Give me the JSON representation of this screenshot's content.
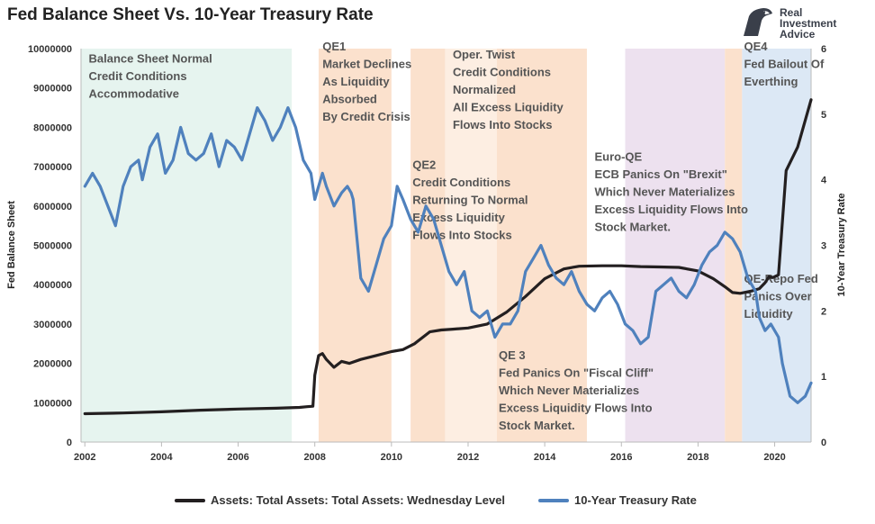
{
  "title": "Fed Balance Sheet Vs. 10-Year Treasury Rate",
  "logo": {
    "line1": "Real",
    "line2": "Investment",
    "line3": "Advice",
    "icon": "eagle-head-icon"
  },
  "chart_data": {
    "type": "line",
    "xlim": [
      2001.9,
      2020.95
    ],
    "x_ticks": [
      "2002",
      "2004",
      "2006",
      "2008",
      "2010",
      "2012",
      "2014",
      "2016",
      "2018",
      "2020"
    ],
    "ylabel_left": "Fed Balance Sheet",
    "ylabel_right": "10-Year Treasury Rate",
    "ylim_left": [
      0,
      10000000
    ],
    "ylim_right": [
      0,
      6
    ],
    "left_ticks": [
      "0",
      "1000000",
      "2000000",
      "3000000",
      "4000000",
      "5000000",
      "6000000",
      "7000000",
      "8000000",
      "9000000",
      "10000000"
    ],
    "right_ticks": [
      "0",
      "1",
      "2",
      "3",
      "4",
      "5",
      "6"
    ],
    "grid": false,
    "legend_position": "bottom",
    "shaded_periods": [
      {
        "x0": 2001.9,
        "x1": 2007.4,
        "color": "#e6f4ef"
      },
      {
        "x0": 2008.1,
        "x1": 2010.0,
        "color": "#fbe1cd"
      },
      {
        "x0": 2010.5,
        "x1": 2011.4,
        "color": "#fbe1cd"
      },
      {
        "x0": 2011.4,
        "x1": 2012.75,
        "color": "#fdeee2"
      },
      {
        "x0": 2012.75,
        "x1": 2015.1,
        "color": "#fbe1cd"
      },
      {
        "x0": 2016.1,
        "x1": 2018.7,
        "color": "#ede1ef"
      },
      {
        "x0": 2018.7,
        "x1": 2019.15,
        "color": "#fbe1cd"
      },
      {
        "x0": 2019.15,
        "x1": 2020.95,
        "color": "#dce8f5"
      }
    ],
    "annotations": [
      {
        "id": "balance-normal",
        "x": 2002.1,
        "y": 9650000,
        "lines": [
          "Balance Sheet Normal",
          "Credit Conditions",
          "Accommodative"
        ]
      },
      {
        "id": "qe1",
        "x": 2008.2,
        "y": 9950000,
        "lines": [
          "QE1",
          "Market Declines",
          "As Liquidity",
          "Absorbed",
          "By Credit Crisis"
        ]
      },
      {
        "id": "operation-twist",
        "x": 2011.6,
        "y": 9750000,
        "lines": [
          "Oper. Twist",
          "Credit Conditions",
          "Normalized",
          "All Excess Liquidity",
          "Flows Into Stocks"
        ]
      },
      {
        "id": "qe2",
        "x": 2010.55,
        "y": 6950000,
        "lines": [
          "QE2",
          "Credit Conditions",
          "Returning To Normal",
          "Excess Liquidity",
          "Flows Into Stocks"
        ]
      },
      {
        "id": "euro-qe",
        "x": 2015.3,
        "y": 7150000,
        "lines": [
          "Euro-QE",
          "ECB Panics On \"Brexit\"",
          "Which Never Materializes",
          "Excess Liquidity Flows Into",
          "Stock Market."
        ]
      },
      {
        "id": "qe4",
        "x": 2019.2,
        "y": 9950000,
        "lines": [
          "QE4",
          "Fed Bailout Of",
          "Everthing"
        ]
      },
      {
        "id": "qe-repo",
        "x": 2019.2,
        "y": 4050000,
        "lines": [
          "QE-Repo Fed",
          "Panics Over",
          "Liquidity"
        ]
      },
      {
        "id": "qe3",
        "x": 2012.8,
        "y": 2100000,
        "lines": [
          "QE 3",
          "Fed Panics On \"Fiscal Cliff\"",
          "Which Never Materializes",
          "Excess Liquidity Flows Into",
          "Stock Market."
        ]
      }
    ],
    "series": [
      {
        "name": "Assets: Total Assets: Total Assets: Wednesday Level",
        "axis": "left",
        "color": "#231f20",
        "x": [
          2002.0,
          2003.0,
          2004.0,
          2005.0,
          2006.0,
          2007.0,
          2007.6,
          2007.8,
          2007.95,
          2008.0,
          2008.1,
          2008.2,
          2008.3,
          2008.5,
          2008.7,
          2008.9,
          2009.2,
          2009.6,
          2010.0,
          2010.3,
          2010.6,
          2011.0,
          2011.3,
          2011.6,
          2012.0,
          2012.5,
          2013.0,
          2013.5,
          2014.0,
          2014.5,
          2014.9,
          2015.5,
          2016.0,
          2016.5,
          2017.0,
          2017.5,
          2018.0,
          2018.4,
          2018.7,
          2018.9,
          2019.1,
          2019.4,
          2019.6,
          2019.75,
          2019.85,
          2019.95,
          2020.1,
          2020.3,
          2020.6,
          2020.95
        ],
        "values": [
          720000,
          740000,
          770000,
          810000,
          840000,
          860000,
          880000,
          900000,
          910000,
          1700000,
          2200000,
          2250000,
          2100000,
          1900000,
          2050000,
          2000000,
          2100000,
          2200000,
          2300000,
          2350000,
          2500000,
          2800000,
          2850000,
          2870000,
          2900000,
          3000000,
          3300000,
          3700000,
          4150000,
          4400000,
          4470000,
          4480000,
          4480000,
          4460000,
          4450000,
          4440000,
          4350000,
          4150000,
          3950000,
          3800000,
          3780000,
          3840000,
          3900000,
          4050000,
          4200000,
          4180000,
          4250000,
          6900000,
          7500000,
          8700000
        ]
      },
      {
        "name": "10-Year Treasury Rate",
        "axis": "right",
        "color": "#4f81bd",
        "x": [
          2002.0,
          2002.2,
          2002.4,
          2002.6,
          2002.8,
          2003.0,
          2003.2,
          2003.4,
          2003.5,
          2003.7,
          2003.9,
          2004.1,
          2004.3,
          2004.5,
          2004.7,
          2004.9,
          2005.1,
          2005.3,
          2005.5,
          2005.7,
          2005.9,
          2006.1,
          2006.3,
          2006.5,
          2006.7,
          2006.9,
          2007.1,
          2007.3,
          2007.5,
          2007.7,
          2007.9,
          2008.0,
          2008.1,
          2008.2,
          2008.3,
          2008.5,
          2008.7,
          2008.85,
          2008.95,
          2009.0,
          2009.2,
          2009.4,
          2009.6,
          2009.8,
          2010.0,
          2010.15,
          2010.3,
          2010.5,
          2010.7,
          2010.9,
          2011.1,
          2011.3,
          2011.5,
          2011.7,
          2011.9,
          2012.1,
          2012.3,
          2012.5,
          2012.7,
          2012.9,
          2013.1,
          2013.3,
          2013.5,
          2013.7,
          2013.9,
          2014.1,
          2014.3,
          2014.5,
          2014.7,
          2014.9,
          2015.1,
          2015.3,
          2015.5,
          2015.7,
          2015.9,
          2016.1,
          2016.3,
          2016.5,
          2016.7,
          2016.9,
          2017.1,
          2017.3,
          2017.5,
          2017.7,
          2017.9,
          2018.1,
          2018.3,
          2018.5,
          2018.7,
          2018.9,
          2019.1,
          2019.3,
          2019.5,
          2019.6,
          2019.75,
          2019.9,
          2020.1,
          2020.2,
          2020.4,
          2020.6,
          2020.8,
          2020.95
        ],
        "values": [
          3.9,
          4.1,
          3.9,
          3.6,
          3.3,
          3.9,
          4.2,
          4.3,
          4.0,
          4.5,
          4.7,
          4.1,
          4.3,
          4.8,
          4.4,
          4.3,
          4.4,
          4.7,
          4.2,
          4.6,
          4.5,
          4.3,
          4.7,
          5.1,
          4.9,
          4.6,
          4.8,
          5.1,
          4.8,
          4.3,
          4.1,
          3.7,
          3.9,
          4.1,
          3.9,
          3.6,
          3.8,
          3.9,
          3.8,
          3.7,
          2.5,
          2.3,
          2.7,
          3.1,
          3.3,
          3.9,
          3.7,
          3.4,
          3.2,
          3.6,
          3.4,
          3.0,
          2.6,
          2.4,
          2.6,
          2.0,
          1.9,
          2.0,
          1.6,
          1.8,
          1.8,
          2.0,
          2.6,
          2.8,
          3.0,
          2.7,
          2.5,
          2.4,
          2.6,
          2.3,
          2.1,
          2.0,
          2.2,
          2.3,
          2.1,
          1.8,
          1.7,
          1.5,
          1.6,
          2.3,
          2.4,
          2.5,
          2.3,
          2.2,
          2.4,
          2.7,
          2.9,
          3.0,
          3.2,
          3.1,
          2.9,
          2.5,
          2.3,
          1.9,
          1.7,
          1.8,
          1.6,
          1.2,
          0.7,
          0.6,
          0.7,
          0.9
        ]
      }
    ]
  }
}
